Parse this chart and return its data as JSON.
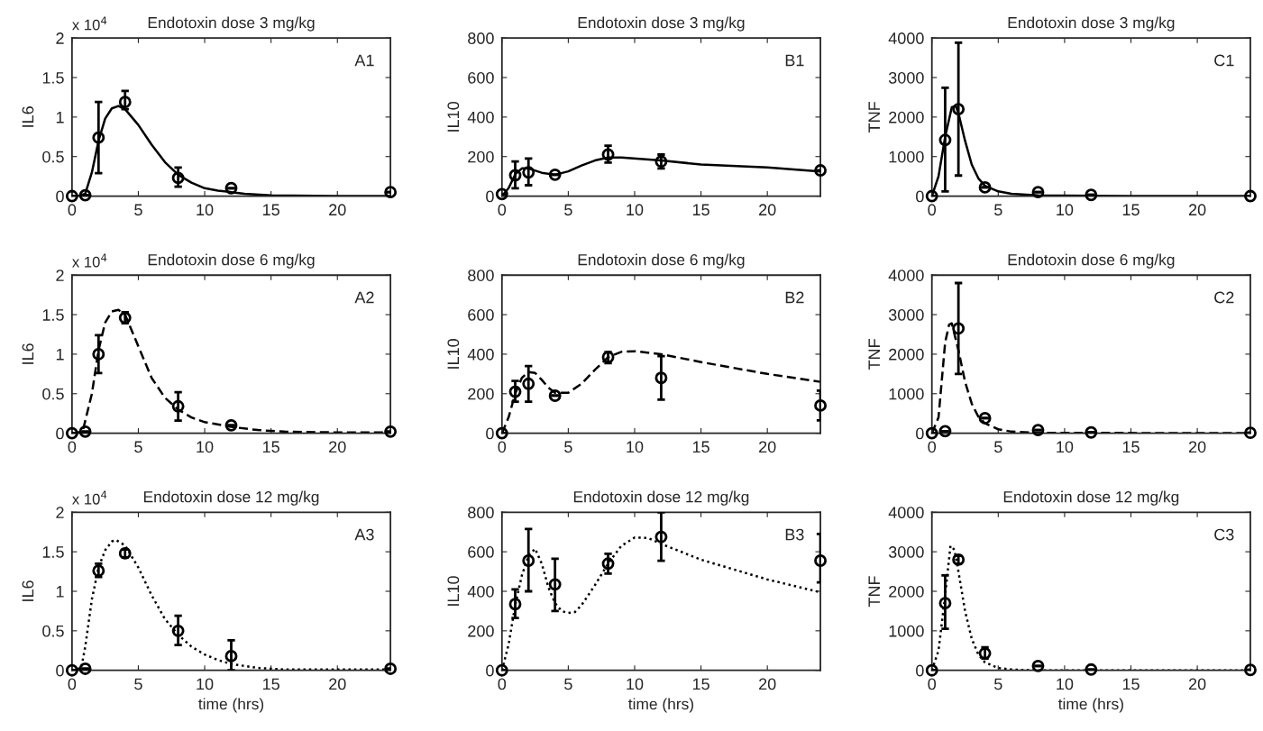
{
  "chart_data": [
    {
      "type": "line",
      "title": "Endotoxin dose 3 mg/kg",
      "ylabel": "IL6",
      "annotations": [
        "A1",
        "x 10$^{4}$"
      ],
      "xlim": [
        0,
        24
      ],
      "xticks": [
        0,
        5,
        10,
        15,
        20
      ],
      "ylim": [
        0,
        2
      ],
      "yticks": [
        0,
        0.5,
        1,
        1.5,
        2
      ],
      "series": [
        {
          "type": "scatter",
          "color": "#000000",
          "marker": "circle",
          "x": [
            0,
            1,
            2,
            4,
            8,
            12,
            24
          ],
          "values": [
            0,
            0.01,
            0.74,
            1.19,
            0.23,
            0.1,
            0.05
          ],
          "errors": [
            null,
            null,
            [
              0.29,
              1.19
            ],
            [
              1.1,
              1.33
            ],
            [
              0.12,
              0.36
            ],
            null,
            null
          ]
        },
        {
          "type": "line",
          "color": "#000000",
          "line_style": "solid",
          "x": [
            0,
            0.5,
            1,
            1.5,
            2,
            2.5,
            3,
            3.5,
            4,
            5,
            6,
            7,
            8,
            9,
            10,
            11,
            12,
            13,
            15,
            20,
            24
          ],
          "values": [
            0,
            0,
            0.03,
            0.3,
            0.7,
            0.98,
            1.11,
            1.14,
            1.1,
            0.9,
            0.65,
            0.43,
            0.27,
            0.17,
            0.1,
            0.07,
            0.05,
            0.03,
            0.01,
            0,
            0
          ]
        }
      ]
    },
    {
      "type": "line",
      "title": "Endotoxin dose 3 mg/kg",
      "ylabel": "IL10",
      "annotations": [
        "B1"
      ],
      "xlim": [
        0,
        24
      ],
      "xticks": [
        0,
        5,
        10,
        15,
        20
      ],
      "ylim": [
        0,
        800
      ],
      "yticks": [
        0,
        200,
        400,
        600,
        800
      ],
      "series": [
        {
          "type": "scatter",
          "color": "#000000",
          "marker": "circle",
          "x": [
            0,
            1,
            2,
            4,
            8,
            12,
            24
          ],
          "values": [
            10,
            105,
            120,
            108,
            210,
            175,
            130
          ],
          "errors": [
            null,
            [
              40,
              175
            ],
            [
              55,
              190
            ],
            null,
            [
              170,
              255
            ],
            [
              140,
              210
            ],
            null
          ]
        },
        {
          "type": "line",
          "color": "#000000",
          "line_style": "solid",
          "x": [
            0,
            0.5,
            1,
            1.5,
            2,
            3,
            4,
            5,
            6,
            7,
            8,
            9,
            12,
            15,
            20,
            24
          ],
          "values": [
            0,
            40,
            110,
            140,
            140,
            118,
            108,
            125,
            155,
            180,
            195,
            195,
            180,
            160,
            145,
            125
          ]
        }
      ]
    },
    {
      "type": "line",
      "title": "Endotoxin dose 3 mg/kg",
      "ylabel": "TNF",
      "annotations": [
        "C1"
      ],
      "xlim": [
        0,
        24
      ],
      "xticks": [
        0,
        5,
        10,
        15,
        20
      ],
      "ylim": [
        0,
        4000
      ],
      "yticks": [
        0,
        1000,
        2000,
        3000,
        4000
      ],
      "series": [
        {
          "type": "scatter",
          "color": "#000000",
          "marker": "circle",
          "x": [
            0,
            1,
            2,
            4,
            8,
            12,
            24
          ],
          "values": [
            0,
            1420,
            2200,
            220,
            100,
            30,
            0
          ],
          "errors": [
            null,
            [
              120,
              2740
            ],
            [
              520,
              3880
            ],
            null,
            null,
            null,
            null
          ]
        },
        {
          "type": "line",
          "color": "#000000",
          "line_style": "solid",
          "x": [
            0,
            0.5,
            1,
            1.5,
            1.8,
            2,
            2.5,
            3,
            3.5,
            4,
            5,
            6,
            8,
            10,
            15,
            24
          ],
          "values": [
            0,
            500,
            1500,
            2250,
            2280,
            2100,
            1400,
            800,
            450,
            260,
            120,
            60,
            20,
            10,
            0,
            0
          ]
        }
      ]
    },
    {
      "type": "line",
      "title": "Endotoxin dose 6 mg/kg",
      "ylabel": "IL6",
      "annotations": [
        "A2",
        "x 10$^{4}$"
      ],
      "xlim": [
        0,
        24
      ],
      "xticks": [
        0,
        5,
        10,
        15,
        20
      ],
      "ylim": [
        0,
        2
      ],
      "yticks": [
        0,
        0.5,
        1,
        1.5,
        2
      ],
      "series": [
        {
          "type": "scatter",
          "color": "#000000",
          "marker": "circle",
          "x": [
            0,
            1,
            2,
            4,
            8,
            12,
            24
          ],
          "values": [
            0,
            0.02,
            1.0,
            1.46,
            0.34,
            0.1,
            0.02
          ],
          "errors": [
            null,
            null,
            [
              0.76,
              1.24
            ],
            [
              1.39,
              1.53
            ],
            [
              0.16,
              0.52
            ],
            null,
            null
          ]
        },
        {
          "type": "line",
          "color": "#000000",
          "line_style": "dashed",
          "x": [
            0,
            0.8,
            1.5,
            2,
            2.5,
            3,
            3.5,
            4,
            5,
            6,
            7,
            8,
            9,
            10,
            12,
            14,
            16,
            20,
            24
          ],
          "values": [
            0,
            0.02,
            0.5,
            1.05,
            1.4,
            1.54,
            1.56,
            1.5,
            1.1,
            0.7,
            0.45,
            0.3,
            0.2,
            0.14,
            0.08,
            0.04,
            0.02,
            0.01,
            0.01
          ]
        }
      ]
    },
    {
      "type": "line",
      "title": "Endotoxin dose 6 mg/kg",
      "ylabel": "IL10",
      "annotations": [
        "B2"
      ],
      "xlim": [
        0,
        24
      ],
      "xticks": [
        0,
        5,
        10,
        15,
        20
      ],
      "ylim": [
        0,
        800
      ],
      "yticks": [
        0,
        200,
        400,
        600,
        800
      ],
      "series": [
        {
          "type": "scatter",
          "color": "#000000",
          "marker": "circle",
          "x": [
            0,
            1,
            2,
            4,
            8,
            12,
            24
          ],
          "values": [
            0,
            210,
            250,
            190,
            385,
            280,
            140
          ],
          "errors": [
            null,
            [
              160,
              265
            ],
            [
              160,
              340
            ],
            null,
            [
              355,
              410
            ],
            [
              170,
              390
            ],
            [
              65,
              215
            ]
          ]
        },
        {
          "type": "line",
          "color": "#000000",
          "line_style": "dashed",
          "x": [
            0,
            0.5,
            1,
            1.5,
            2,
            2.5,
            3,
            3.5,
            4,
            5,
            6,
            7,
            8,
            9,
            10,
            12,
            15,
            20,
            24
          ],
          "values": [
            0,
            80,
            200,
            280,
            310,
            305,
            270,
            230,
            205,
            205,
            250,
            320,
            385,
            412,
            415,
            400,
            360,
            300,
            260
          ]
        }
      ]
    },
    {
      "type": "line",
      "title": "Endotoxin dose 6 mg/kg",
      "ylabel": "TNF",
      "annotations": [
        "C2"
      ],
      "xlim": [
        0,
        24
      ],
      "xticks": [
        0,
        5,
        10,
        15,
        20
      ],
      "ylim": [
        0,
        4000
      ],
      "yticks": [
        0,
        1000,
        2000,
        3000,
        4000
      ],
      "series": [
        {
          "type": "scatter",
          "color": "#000000",
          "marker": "circle",
          "x": [
            0,
            1,
            2,
            4,
            8,
            12,
            24
          ],
          "values": [
            0,
            50,
            2650,
            380,
            80,
            20,
            10
          ],
          "errors": [
            null,
            null,
            [
              1500,
              3800
            ],
            null,
            null,
            null,
            null
          ]
        },
        {
          "type": "line",
          "color": "#000000",
          "line_style": "dashed",
          "x": [
            0,
            0.5,
            1,
            1.3,
            1.5,
            2,
            2.5,
            3,
            3.5,
            4,
            5,
            6,
            8,
            24
          ],
          "values": [
            0,
            400,
            2300,
            2750,
            2780,
            2100,
            1300,
            750,
            420,
            250,
            100,
            40,
            10,
            0
          ]
        }
      ]
    },
    {
      "type": "line",
      "title": "Endotoxin dose 12 mg/kg",
      "xlabel": "time (hrs)",
      "ylabel": "IL6",
      "annotations": [
        "A3",
        "x 10$^{4}$"
      ],
      "xlim": [
        0,
        24
      ],
      "xticks": [
        0,
        5,
        10,
        15,
        20
      ],
      "ylim": [
        0,
        2
      ],
      "yticks": [
        0,
        0.5,
        1,
        1.5,
        2
      ],
      "series": [
        {
          "type": "scatter",
          "color": "#000000",
          "marker": "circle",
          "x": [
            0,
            1,
            2,
            4,
            8,
            12,
            24
          ],
          "values": [
            0,
            0.02,
            1.26,
            1.48,
            0.5,
            0.18,
            0.02
          ],
          "errors": [
            null,
            null,
            [
              1.18,
              1.35
            ],
            [
              1.43,
              1.53
            ],
            [
              0.32,
              0.69
            ],
            [
              0,
              0.38
            ],
            null
          ]
        },
        {
          "type": "line",
          "color": "#000000",
          "line_style": "dotted",
          "x": [
            0,
            0.7,
            1,
            1.5,
            2,
            2.5,
            3,
            3.3,
            4,
            5,
            6,
            7,
            8,
            9,
            10,
            11,
            12,
            14,
            16,
            24
          ],
          "values": [
            0,
            0.03,
            0.3,
            0.9,
            1.3,
            1.52,
            1.63,
            1.65,
            1.58,
            1.3,
            0.95,
            0.65,
            0.45,
            0.3,
            0.2,
            0.13,
            0.08,
            0.03,
            0.01,
            0.01
          ]
        }
      ]
    },
    {
      "type": "line",
      "title": "Endotoxin dose 12 mg/kg",
      "xlabel": "time (hrs)",
      "ylabel": "IL10",
      "annotations": [
        "B3"
      ],
      "xlim": [
        0,
        24
      ],
      "xticks": [
        0,
        5,
        10,
        15,
        20
      ],
      "ylim": [
        0,
        800
      ],
      "yticks": [
        0,
        200,
        400,
        600,
        800
      ],
      "series": [
        {
          "type": "scatter",
          "color": "#000000",
          "marker": "circle",
          "x": [
            0,
            1,
            2,
            4,
            8,
            12,
            24
          ],
          "values": [
            0,
            335,
            555,
            435,
            540,
            675,
            555
          ],
          "errors": [
            null,
            [
              265,
              410
            ],
            [
              400,
              715
            ],
            [
              300,
              565
            ],
            [
              490,
              590
            ],
            [
              555,
              800
            ],
            [
              445,
              690
            ]
          ]
        },
        {
          "type": "line",
          "color": "#000000",
          "line_style": "dotted",
          "x": [
            0,
            0.5,
            1,
            1.5,
            2,
            2.5,
            3,
            3.5,
            4,
            4.5,
            5,
            5.5,
            6,
            7,
            8,
            9,
            10,
            11,
            12,
            15,
            20,
            24
          ],
          "values": [
            0,
            130,
            330,
            480,
            580,
            615,
            540,
            420,
            340,
            300,
            290,
            295,
            330,
            430,
            540,
            630,
            672,
            670,
            640,
            560,
            460,
            395
          ]
        }
      ]
    },
    {
      "type": "line",
      "title": "Endotoxin dose 12 mg/kg",
      "xlabel": "time (hrs)",
      "ylabel": "TNF",
      "annotations": [
        "C3"
      ],
      "xlim": [
        0,
        24
      ],
      "xticks": [
        0,
        5,
        10,
        15,
        20
      ],
      "ylim": [
        0,
        4000
      ],
      "yticks": [
        0,
        1000,
        2000,
        3000,
        4000
      ],
      "series": [
        {
          "type": "scatter",
          "color": "#000000",
          "marker": "circle",
          "x": [
            0,
            1,
            2,
            4,
            8,
            12,
            24
          ],
          "values": [
            0,
            1700,
            2800,
            430,
            110,
            20,
            10
          ],
          "errors": [
            null,
            [
              1050,
              2400
            ],
            [
              2700,
              2900
            ],
            [
              300,
              580
            ],
            null,
            null,
            null
          ]
        },
        {
          "type": "line",
          "color": "#000000",
          "line_style": "dotted",
          "x": [
            0,
            0.5,
            1,
            1.4,
            1.7,
            2,
            2.5,
            3,
            3.5,
            4,
            5,
            6,
            8,
            24
          ],
          "values": [
            0,
            500,
            1900,
            3150,
            3050,
            2500,
            1500,
            800,
            400,
            200,
            60,
            20,
            0,
            0
          ]
        }
      ]
    }
  ]
}
